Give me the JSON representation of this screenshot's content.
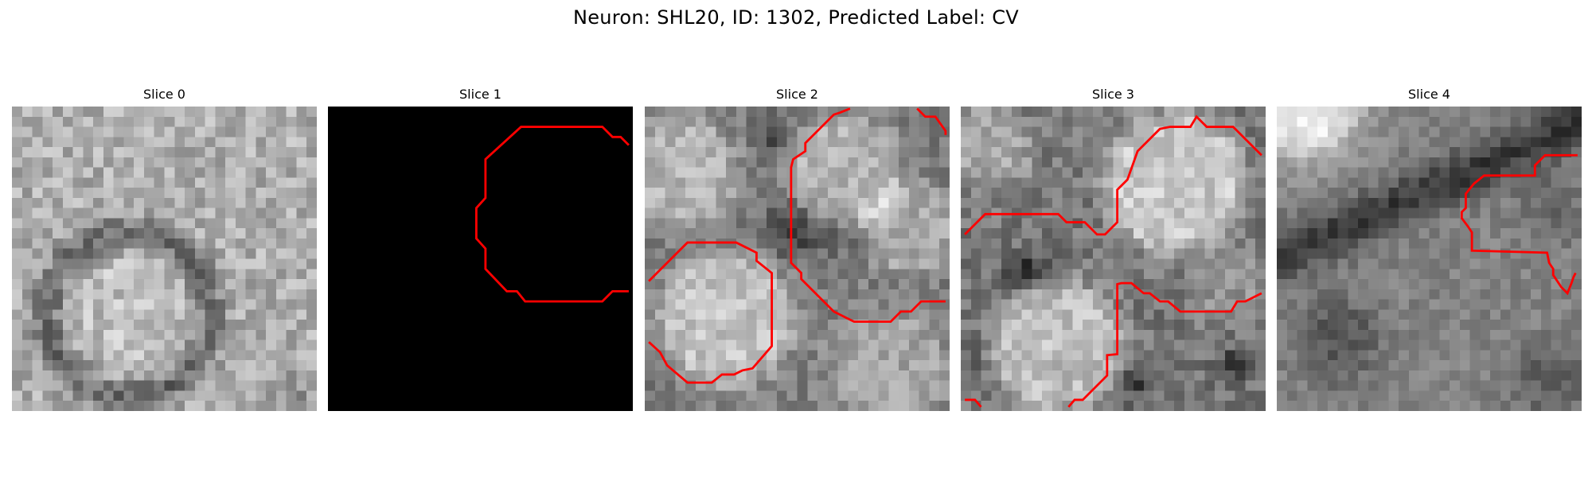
{
  "figure": {
    "title": "Neuron: SHL20, ID: 1302, Predicted Label: CV"
  },
  "panels": [
    {
      "title": "Slice 0"
    },
    {
      "title": "Slice 1"
    },
    {
      "title": "Slice 2"
    },
    {
      "title": "Slice 3"
    },
    {
      "title": "Slice 4"
    }
  ],
  "colors": {
    "contour": "#ff0000",
    "background": "#ffffff"
  }
}
